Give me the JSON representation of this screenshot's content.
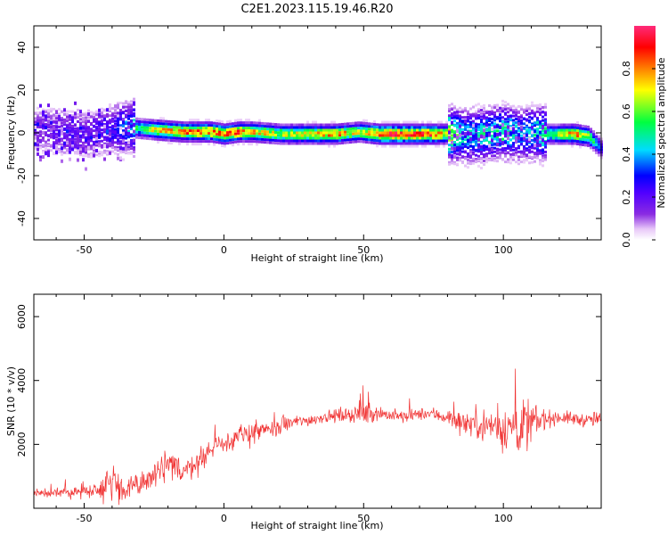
{
  "title": "C2E1.2023.115.19.46.R20",
  "colors": {
    "signal": "#f03030",
    "spectrogram_scale": [
      "#ffffff",
      "#e8c8f8",
      "#8a2be2",
      "#5a00ff",
      "#0000ff",
      "#00d8ff",
      "#00ff40",
      "#ffff00",
      "#ff8000",
      "#ff0000",
      "#ff2a7a"
    ]
  },
  "chart_data": [
    {
      "type": "heatmap",
      "xlabel": "Height of straight line (km)",
      "ylabel": "Frequency (Hz)",
      "xlim": [
        -68,
        135
      ],
      "ylim": [
        -50,
        50
      ],
      "xticks": [
        -50,
        0,
        50,
        100
      ],
      "yticks": [
        -40,
        -20,
        0,
        20,
        40
      ],
      "grid": false,
      "colorbar": {
        "label": "Normalized spectral amplitude",
        "range": [
          0,
          1
        ],
        "ticks": [
          "0.0",
          "0.2",
          "0.4",
          "0.6",
          "0.8"
        ]
      },
      "ridge": {
        "description_free": true,
        "x": [
          -68,
          -60,
          -50,
          -40,
          -33,
          -25,
          -15,
          -5,
          0,
          5,
          10,
          20,
          30,
          40,
          48,
          55,
          65,
          75,
          80,
          85,
          90,
          95,
          100,
          105,
          110,
          115,
          120,
          125,
          130,
          135
        ],
        "freq_center": [
          2,
          1,
          0,
          2,
          3,
          2,
          1,
          1,
          0,
          1,
          1,
          0,
          0,
          0,
          1,
          0,
          0,
          0,
          0,
          -1,
          -1,
          0,
          1,
          0,
          0,
          0,
          0,
          0,
          -1,
          -7
        ],
        "peak_amplitude": [
          0.15,
          0.2,
          0.2,
          0.25,
          0.5,
          0.75,
          0.85,
          0.9,
          0.95,
          0.9,
          0.8,
          0.7,
          0.75,
          0.85,
          0.7,
          0.95,
          0.95,
          0.9,
          0.75,
          0.5,
          0.5,
          0.55,
          0.55,
          0.45,
          0.5,
          0.6,
          0.7,
          0.85,
          0.7,
          0.3
        ]
      }
    },
    {
      "type": "line",
      "xlabel": "Height of straight line (km)",
      "ylabel": "SNR (10 * v/v)",
      "xlim": [
        -68,
        135
      ],
      "ylim": [
        0,
        6700
      ],
      "xticks": [
        -50,
        0,
        50,
        100
      ],
      "yticks": [
        2000,
        4000,
        6000
      ],
      "grid": false,
      "series": [
        {
          "x": [
            -68,
            -60,
            -50,
            -45,
            -40,
            -35,
            -30,
            -25,
            -20,
            -15,
            -10,
            -5,
            0,
            5,
            10,
            15,
            20,
            25,
            30,
            35,
            40,
            45,
            50,
            55,
            60,
            65,
            70,
            75,
            80,
            85,
            90,
            95,
            100,
            105,
            110,
            115,
            120,
            125,
            130,
            135
          ],
          "values": [
            500,
            450,
            550,
            600,
            900,
            500,
            800,
            1000,
            1300,
            1200,
            1400,
            1800,
            2100,
            2200,
            2400,
            2400,
            2550,
            2700,
            2750,
            2850,
            2900,
            2950,
            2950,
            3000,
            2900,
            2850,
            2950,
            2950,
            2850,
            2700,
            2650,
            2600,
            2500,
            2550,
            2600,
            2800,
            2850,
            2800,
            2750,
            2800
          ],
          "spread": [
            300,
            300,
            400,
            500,
            1200,
            600,
            900,
            1000,
            1000,
            900,
            700,
            700,
            600,
            600,
            800,
            600,
            500,
            400,
            350,
            350,
            350,
            500,
            700,
            450,
            400,
            400,
            350,
            400,
            500,
            700,
            900,
            1000,
            1300,
            1600,
            1800,
            500,
            400,
            400,
            400,
            500
          ]
        }
      ]
    }
  ]
}
